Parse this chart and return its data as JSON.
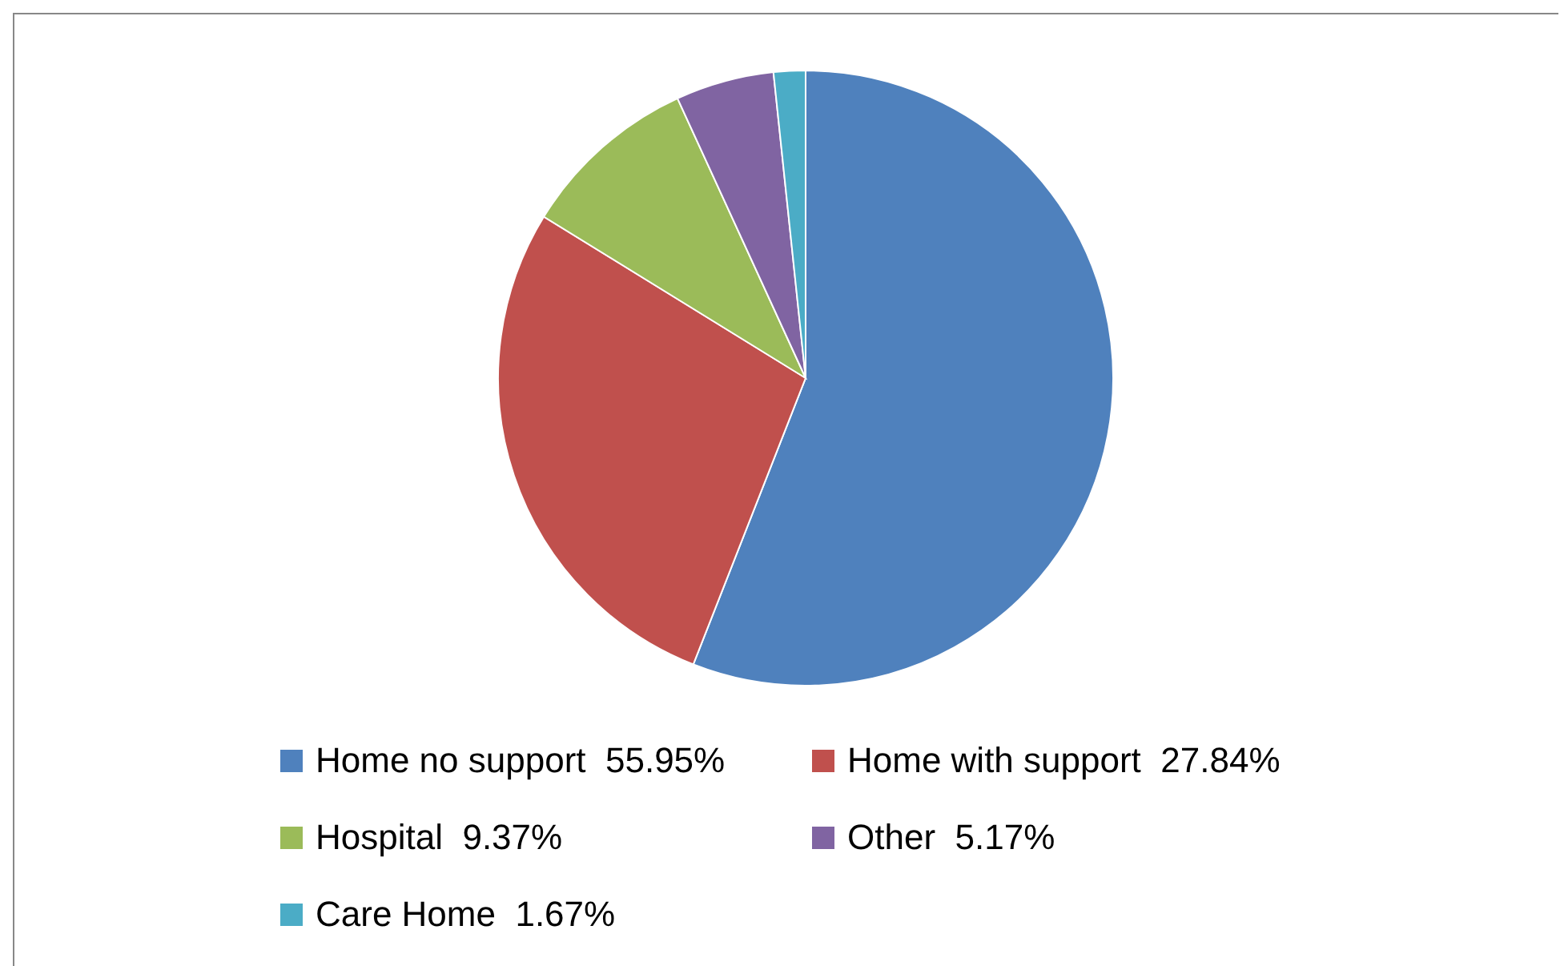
{
  "chart_data": {
    "type": "pie",
    "categories": [
      "Home no support  55.95%",
      "Home with support  27.84%",
      "Hospital  9.37%",
      "Other  5.17%",
      "Care Home  1.67%"
    ],
    "values": [
      55.95,
      27.84,
      9.37,
      5.17,
      1.67
    ],
    "colors": [
      "#4f81bd",
      "#c0504d",
      "#9bbb59",
      "#8064a2",
      "#4bacc6"
    ],
    "legend": "bottom"
  }
}
